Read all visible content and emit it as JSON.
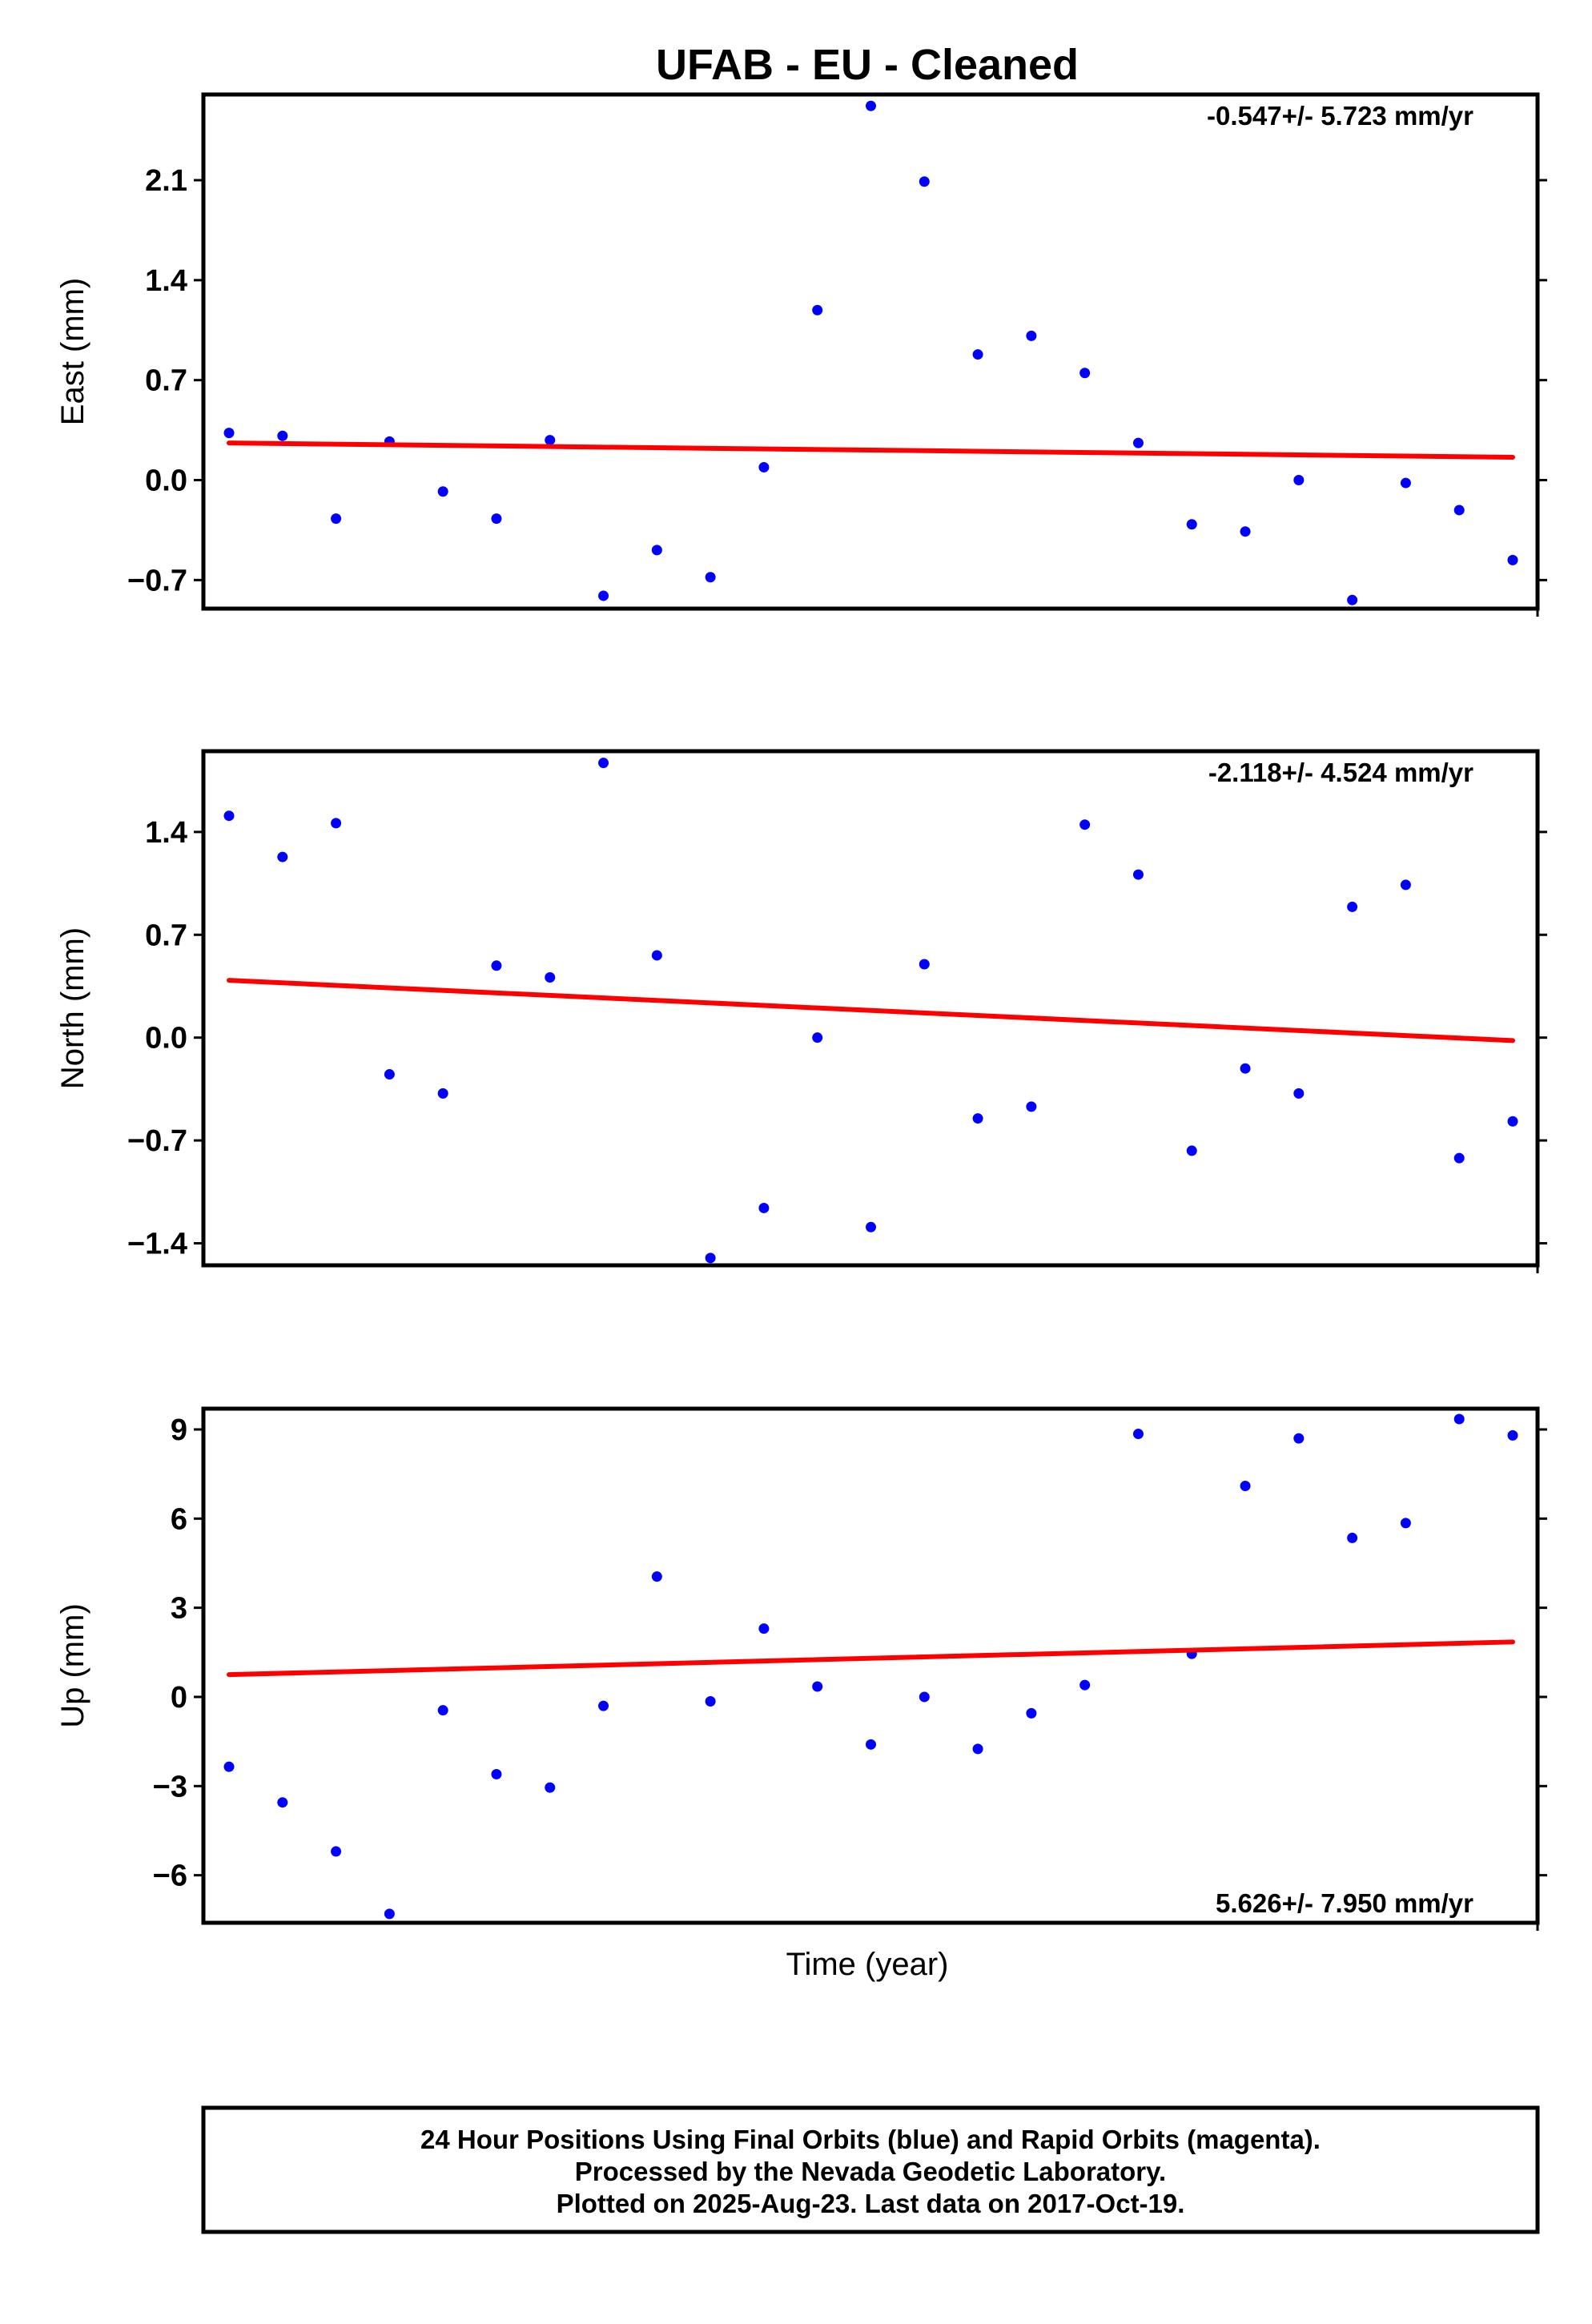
{
  "title": "UFAB  - EU - Cleaned",
  "xlabel": "Time (year)",
  "footer": {
    "line1": "24 Hour Positions Using Final Orbits (blue) and Rapid Orbits (magenta).",
    "line2": "Processed by the Nevada Geodetic Laboratory.",
    "line3": "Plotted on 2025-Aug-23. Last data on 2017-Oct-19."
  },
  "colors": {
    "points": "#0000ff",
    "fit": "#ff0000",
    "frame": "#000000"
  },
  "chart_data": [
    {
      "type": "scatter",
      "ylabel": "East (mm)",
      "rate": "-0.547+/- 5.723 mm/yr",
      "rate_position": "top-right",
      "ylim": [
        -0.9,
        2.7
      ],
      "yticks": [
        2.1,
        1.4,
        0.7,
        0.0,
        -0.7
      ],
      "ytick_labels": [
        "2.1",
        "1.4",
        "0.7",
        "0.0",
        "−0.7"
      ],
      "values": [
        0.33,
        0.31,
        -0.27,
        0.27,
        -0.08,
        -0.27,
        0.28,
        -0.81,
        -0.49,
        -0.68,
        0.09,
        1.19,
        2.62,
        2.09,
        0.88,
        1.01,
        0.75,
        0.26,
        -0.31,
        -0.36,
        0.0,
        -0.84,
        -0.02,
        -0.21,
        -0.56
      ],
      "fit": [
        0.26,
        0.16
      ]
    },
    {
      "type": "scatter",
      "ylabel": "North (mm)",
      "rate": "-2.118+/- 4.524 mm/yr",
      "rate_position": "top-right",
      "ylim": [
        -1.55,
        1.95
      ],
      "yticks": [
        1.4,
        0.7,
        0.0,
        -0.7,
        -1.4
      ],
      "ytick_labels": [
        "1.4",
        "0.7",
        "0.0",
        "−0.7",
        "−1.4"
      ],
      "values": [
        1.51,
        1.23,
        1.46,
        -0.25,
        -0.38,
        0.49,
        0.41,
        1.87,
        0.56,
        -1.5,
        -1.16,
        0.0,
        -1.29,
        0.5,
        -0.55,
        -0.47,
        1.45,
        1.11,
        -0.77,
        -0.21,
        -0.38,
        0.89,
        1.04,
        -0.82,
        -0.57
      ],
      "fit": [
        0.39,
        -0.02
      ]
    },
    {
      "type": "scatter",
      "ylabel": "Up (mm)",
      "rate": "5.626+/- 7.950 mm/yr",
      "rate_position": "bottom-right",
      "ylim": [
        -7.6,
        9.7
      ],
      "yticks": [
        9,
        6,
        3,
        0,
        -3,
        -6
      ],
      "ytick_labels": [
        "9",
        "6",
        "3",
        "0",
        "−3",
        "−6"
      ],
      "values": [
        -2.35,
        -3.55,
        -5.2,
        -7.3,
        -0.45,
        -2.6,
        -3.05,
        -0.3,
        4.05,
        -0.15,
        2.3,
        0.35,
        -1.6,
        0.0,
        -1.75,
        -0.55,
        0.4,
        8.85,
        1.45,
        7.1,
        8.7,
        5.35,
        5.85,
        9.35,
        8.8
      ],
      "fit": [
        0.75,
        1.85
      ]
    }
  ]
}
